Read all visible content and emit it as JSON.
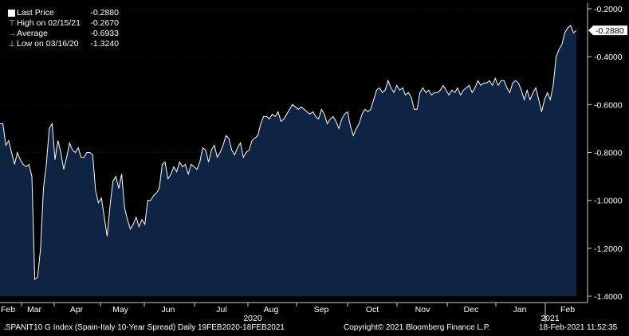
{
  "chart_data": {
    "type": "area",
    "ylim": [
      -1.4,
      -0.2
    ],
    "y_ticks": [
      "-0.2000",
      "-0.4000",
      "-0.6000",
      "-0.8000",
      "-1.0000",
      "-1.2000",
      "-1.4000"
    ],
    "x_month_labels": [
      "Feb",
      "Mar",
      "Apr",
      "May",
      "Jun",
      "Jul",
      "Aug",
      "Sep",
      "Oct",
      "Nov",
      "Dec",
      "Jan",
      "Feb"
    ],
    "x_year_labels": [
      "2020",
      "2021"
    ],
    "last_value_label": "-0.2880",
    "legend": [
      {
        "label": "Last Price",
        "value": "-0.2880",
        "symbol": "square"
      },
      {
        "label": "High on 02/15/21",
        "value": "-0.2670",
        "symbol": "high"
      },
      {
        "label": "Average",
        "value": "-0.6933",
        "symbol": "avg"
      },
      {
        "label": "Low on 03/16/20",
        "value": "-1.3240",
        "symbol": "low"
      }
    ],
    "colors": {
      "fill": "#0e2442",
      "line": "#ffffff",
      "background": "#000000"
    },
    "series": [
      {
        "values": [
          -0.68,
          -0.68,
          -0.77,
          -0.75,
          -0.8,
          -0.85,
          -0.8,
          -0.83,
          -0.85,
          -0.86,
          -0.85,
          -0.9,
          -1.33,
          -1.32,
          -1.2,
          -0.95,
          -0.85,
          -0.7,
          -0.68,
          -0.83,
          -0.75,
          -0.8,
          -0.87,
          -0.82,
          -0.76,
          -0.79,
          -0.8,
          -0.78,
          -0.82,
          -0.82,
          -0.8,
          -0.8,
          -0.81,
          -0.96,
          -1.01,
          -0.99,
          -1.07,
          -1.15,
          -1.02,
          -0.92,
          -0.9,
          -0.95,
          -0.89,
          -1.03,
          -1.08,
          -1.12,
          -1.1,
          -1.07,
          -1.11,
          -1.08,
          -1.1,
          -1.0,
          -1.0,
          -0.98,
          -0.97,
          -0.95,
          -0.85,
          -0.84,
          -0.91,
          -0.89,
          -0.86,
          -0.88,
          -0.84,
          -0.86,
          -0.85,
          -0.89,
          -0.85,
          -0.86,
          -0.87,
          -0.84,
          -0.78,
          -0.79,
          -0.84,
          -0.79,
          -0.77,
          -0.82,
          -0.8,
          -0.77,
          -0.73,
          -0.74,
          -0.79,
          -0.81,
          -0.78,
          -0.76,
          -0.82,
          -0.8,
          -0.79,
          -0.75,
          -0.74,
          -0.73,
          -0.68,
          -0.65,
          -0.65,
          -0.66,
          -0.64,
          -0.65,
          -0.63,
          -0.67,
          -0.66,
          -0.64,
          -0.62,
          -0.6,
          -0.61,
          -0.62,
          -0.61,
          -0.62,
          -0.63,
          -0.64,
          -0.63,
          -0.65,
          -0.66,
          -0.62,
          -0.64,
          -0.68,
          -0.66,
          -0.65,
          -0.67,
          -0.7,
          -0.66,
          -0.64,
          -0.63,
          -0.69,
          -0.73,
          -0.7,
          -0.68,
          -0.64,
          -0.62,
          -0.63,
          -0.62,
          -0.58,
          -0.54,
          -0.53,
          -0.55,
          -0.54,
          -0.5,
          -0.53,
          -0.55,
          -0.52,
          -0.54,
          -0.53,
          -0.56,
          -0.55,
          -0.57,
          -0.62,
          -0.62,
          -0.55,
          -0.53,
          -0.55,
          -0.54,
          -0.56,
          -0.55,
          -0.55,
          -0.54,
          -0.52,
          -0.54,
          -0.56,
          -0.54,
          -0.55,
          -0.53,
          -0.56,
          -0.54,
          -0.53,
          -0.52,
          -0.55,
          -0.53,
          -0.5,
          -0.52,
          -0.51,
          -0.51,
          -0.5,
          -0.52,
          -0.49,
          -0.52,
          -0.5,
          -0.5,
          -0.53,
          -0.55,
          -0.51,
          -0.5,
          -0.51,
          -0.54,
          -0.58,
          -0.54,
          -0.58,
          -0.55,
          -0.53,
          -0.58,
          -0.63,
          -0.58,
          -0.55,
          -0.58,
          -0.52,
          -0.4,
          -0.37,
          -0.35,
          -0.3,
          -0.28,
          -0.27,
          -0.3,
          -0.29
        ]
      }
    ]
  },
  "footer": {
    "left": ".SPANIT10 G Index (Spain-Italy 10-Year Spread)  Daily 19FEB2020-18FEB2021",
    "center": "Copyright© 2021 Bloomberg Finance L.P.",
    "right": "18-Feb-2021 11:52:35"
  }
}
